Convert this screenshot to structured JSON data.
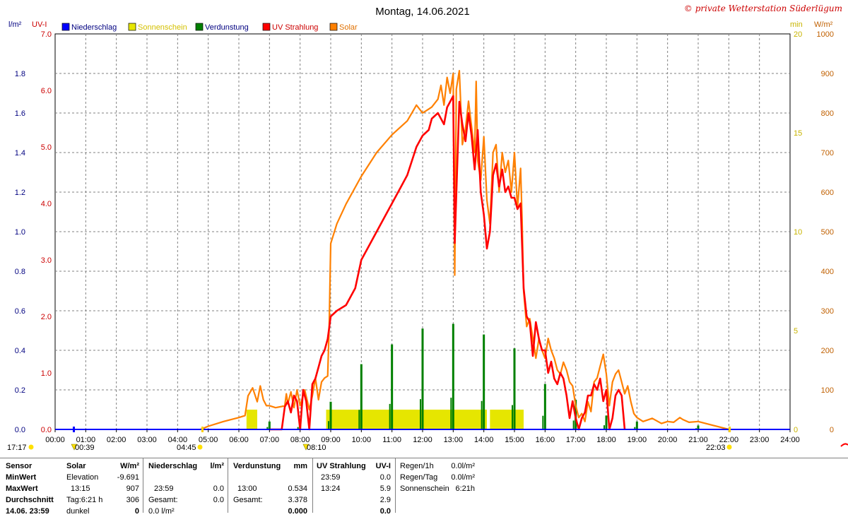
{
  "title": "Montag, 14.06.2021",
  "copyright": "© private Wetterstation Süderlügum",
  "left_axes": {
    "unit_rain": "l/m²",
    "unit_uv": "UV-I",
    "rain_ticks": [
      "0.0",
      "0.2",
      "0.4",
      "0.6",
      "0.8",
      "1.0",
      "1.2",
      "1.4",
      "1.6",
      "1.8"
    ],
    "uv_ticks": [
      "0.0",
      "1.0",
      "2.0",
      "3.0",
      "4.0",
      "5.0",
      "6.0",
      "7.0"
    ]
  },
  "right_axes": {
    "unit_min": "min",
    "unit_wm2": "W/m²",
    "min_ticks": [
      "0",
      "5",
      "10",
      "15",
      "20"
    ],
    "wm2_ticks": [
      "0",
      "100",
      "200",
      "300",
      "400",
      "500",
      "600",
      "700",
      "800",
      "900",
      "1000"
    ]
  },
  "legend": [
    {
      "label": "Niederschlag",
      "color": "#0000ff",
      "text_color": "#000080"
    },
    {
      "label": "Sonnenschein",
      "color": "#e6e600",
      "text_color": "#d4c000"
    },
    {
      "label": "Verdunstung",
      "color": "#008000",
      "text_color": "#000080"
    },
    {
      "label": "UV Strahlung",
      "color": "#ff0000",
      "text_color": "#cc0000"
    },
    {
      "label": "Solar",
      "color": "#ff8000",
      "text_color": "#e07000"
    }
  ],
  "events": {
    "left_time": "17:17",
    "moonset": "00:39",
    "sunrise": "04:45",
    "noon_marker": "08:10",
    "sunset": "22:03"
  },
  "chart_data": {
    "type": "line",
    "title": "Montag, 14.06.2021",
    "x_range_hours": [
      0,
      24
    ],
    "x_ticks": [
      "00:00",
      "01:00",
      "02:00",
      "03:00",
      "04:00",
      "05:00",
      "06:00",
      "07:00",
      "08:00",
      "09:00",
      "10:00",
      "11:00",
      "12:00",
      "13:00",
      "14:00",
      "15:00",
      "16:00",
      "17:00",
      "18:00",
      "19:00",
      "20:00",
      "21:00",
      "22:00",
      "23:00",
      "24:00"
    ],
    "grid": true,
    "legend_position": "top-left",
    "axes": {
      "solar_wm2": [
        0,
        1000
      ],
      "uv_index": [
        0,
        7
      ],
      "rain_lm2": [
        0,
        2
      ],
      "sunshine_min": [
        0,
        20
      ]
    },
    "series": [
      {
        "name": "Solar",
        "unit": "W/m²",
        "color": "#ff8000",
        "points": [
          [
            4.75,
            0
          ],
          [
            5.0,
            8
          ],
          [
            5.5,
            20
          ],
          [
            6.0,
            30
          ],
          [
            6.2,
            35
          ],
          [
            6.3,
            85
          ],
          [
            6.45,
            105
          ],
          [
            6.6,
            70
          ],
          [
            6.7,
            110
          ],
          [
            6.8,
            75
          ],
          [
            6.9,
            60
          ],
          [
            7.0,
            60
          ],
          [
            7.2,
            55
          ],
          [
            7.4,
            58
          ],
          [
            7.5,
            60
          ],
          [
            7.55,
            90
          ],
          [
            7.6,
            65
          ],
          [
            7.7,
            95
          ],
          [
            7.8,
            55
          ],
          [
            7.9,
            100
          ],
          [
            8.0,
            60
          ],
          [
            8.15,
            100
          ],
          [
            8.3,
            50
          ],
          [
            8.4,
            85
          ],
          [
            8.5,
            130
          ],
          [
            8.6,
            75
          ],
          [
            8.7,
            120
          ],
          [
            8.8,
            130
          ],
          [
            8.9,
            135
          ],
          [
            8.95,
            260
          ],
          [
            9.0,
            470
          ],
          [
            9.2,
            520
          ],
          [
            9.5,
            570
          ],
          [
            10.0,
            640
          ],
          [
            10.5,
            700
          ],
          [
            11.0,
            745
          ],
          [
            11.5,
            780
          ],
          [
            11.8,
            820
          ],
          [
            12.0,
            800
          ],
          [
            12.2,
            810
          ],
          [
            12.3,
            815
          ],
          [
            12.5,
            835
          ],
          [
            12.6,
            870
          ],
          [
            12.7,
            820
          ],
          [
            12.8,
            890
          ],
          [
            12.9,
            850
          ],
          [
            13.0,
            900
          ],
          [
            13.05,
            390
          ],
          [
            13.1,
            860
          ],
          [
            13.2,
            907
          ],
          [
            13.3,
            720
          ],
          [
            13.4,
            760
          ],
          [
            13.5,
            830
          ],
          [
            13.7,
            700
          ],
          [
            13.75,
            880
          ],
          [
            13.8,
            680
          ],
          [
            13.9,
            630
          ],
          [
            14.0,
            740
          ],
          [
            14.1,
            580
          ],
          [
            14.2,
            520
          ],
          [
            14.3,
            700
          ],
          [
            14.4,
            720
          ],
          [
            14.5,
            600
          ],
          [
            14.6,
            700
          ],
          [
            14.7,
            650
          ],
          [
            14.8,
            680
          ],
          [
            14.9,
            600
          ],
          [
            15.0,
            700
          ],
          [
            15.1,
            560
          ],
          [
            15.2,
            660
          ],
          [
            15.25,
            530
          ],
          [
            15.3,
            350
          ],
          [
            15.4,
            260
          ],
          [
            15.5,
            280
          ],
          [
            15.6,
            230
          ],
          [
            15.7,
            180
          ],
          [
            15.8,
            230
          ],
          [
            15.9,
            200
          ],
          [
            16.0,
            180
          ],
          [
            16.1,
            230
          ],
          [
            16.2,
            200
          ],
          [
            16.3,
            180
          ],
          [
            16.4,
            150
          ],
          [
            16.5,
            140
          ],
          [
            16.6,
            170
          ],
          [
            16.7,
            150
          ],
          [
            16.8,
            120
          ],
          [
            16.9,
            110
          ],
          [
            17.0,
            60
          ],
          [
            17.1,
            30
          ],
          [
            17.2,
            40
          ],
          [
            17.3,
            20
          ],
          [
            17.4,
            70
          ],
          [
            17.5,
            45
          ],
          [
            17.6,
            120
          ],
          [
            17.7,
            130
          ],
          [
            17.8,
            160
          ],
          [
            17.9,
            190
          ],
          [
            18.0,
            140
          ],
          [
            18.1,
            60
          ],
          [
            18.2,
            120
          ],
          [
            18.3,
            140
          ],
          [
            18.4,
            150
          ],
          [
            18.5,
            120
          ],
          [
            18.6,
            90
          ],
          [
            18.7,
            110
          ],
          [
            18.8,
            70
          ],
          [
            18.9,
            40
          ],
          [
            19.0,
            30
          ],
          [
            19.2,
            20
          ],
          [
            19.5,
            28
          ],
          [
            19.8,
            15
          ],
          [
            20.0,
            20
          ],
          [
            20.2,
            18
          ],
          [
            20.4,
            30
          ],
          [
            20.5,
            25
          ],
          [
            20.7,
            18
          ],
          [
            21.0,
            20
          ],
          [
            21.5,
            10
          ],
          [
            22.0,
            0
          ]
        ]
      },
      {
        "name": "UV Strahlung",
        "unit": "UV-I",
        "color": "#ff0000",
        "points": [
          [
            7.0,
            0
          ],
          [
            7.4,
            0
          ],
          [
            7.5,
            0.4
          ],
          [
            7.6,
            0.5
          ],
          [
            7.7,
            0.3
          ],
          [
            7.8,
            0.6
          ],
          [
            7.9,
            0.5
          ],
          [
            8.0,
            0.0
          ],
          [
            8.1,
            0.7
          ],
          [
            8.2,
            0.5
          ],
          [
            8.3,
            0.0
          ],
          [
            8.4,
            0.8
          ],
          [
            8.5,
            0.9
          ],
          [
            8.6,
            1.1
          ],
          [
            8.7,
            1.3
          ],
          [
            8.8,
            1.4
          ],
          [
            8.9,
            1.6
          ],
          [
            9.0,
            2.0
          ],
          [
            9.2,
            2.1
          ],
          [
            9.5,
            2.2
          ],
          [
            9.8,
            2.5
          ],
          [
            10.0,
            3.0
          ],
          [
            10.2,
            3.2
          ],
          [
            10.5,
            3.5
          ],
          [
            10.8,
            3.8
          ],
          [
            11.0,
            4.0
          ],
          [
            11.3,
            4.3
          ],
          [
            11.5,
            4.5
          ],
          [
            11.8,
            5.0
          ],
          [
            12.0,
            5.2
          ],
          [
            12.2,
            5.3
          ],
          [
            12.3,
            5.5
          ],
          [
            12.5,
            5.6
          ],
          [
            12.7,
            5.4
          ],
          [
            12.8,
            5.7
          ],
          [
            13.0,
            5.9
          ],
          [
            13.05,
            3.3
          ],
          [
            13.2,
            5.8
          ],
          [
            13.3,
            5.4
          ],
          [
            13.4,
            5.1
          ],
          [
            13.5,
            5.6
          ],
          [
            13.6,
            5.2
          ],
          [
            13.7,
            4.6
          ],
          [
            13.8,
            5.3
          ],
          [
            13.9,
            4.2
          ],
          [
            14.0,
            3.8
          ],
          [
            14.1,
            3.2
          ],
          [
            14.2,
            3.5
          ],
          [
            14.3,
            4.5
          ],
          [
            14.4,
            4.7
          ],
          [
            14.5,
            4.3
          ],
          [
            14.6,
            4.6
          ],
          [
            14.7,
            4.2
          ],
          [
            14.8,
            4.3
          ],
          [
            14.9,
            4.1
          ],
          [
            15.0,
            4.1
          ],
          [
            15.1,
            3.9
          ],
          [
            15.2,
            4.0
          ],
          [
            15.3,
            2.5
          ],
          [
            15.4,
            2.0
          ],
          [
            15.5,
            1.9
          ],
          [
            15.6,
            1.3
          ],
          [
            15.7,
            1.9
          ],
          [
            15.8,
            1.6
          ],
          [
            15.9,
            1.4
          ],
          [
            16.0,
            1.4
          ],
          [
            16.1,
            1.0
          ],
          [
            16.2,
            1.2
          ],
          [
            16.3,
            0.9
          ],
          [
            16.4,
            0.8
          ],
          [
            16.5,
            1.0
          ],
          [
            16.6,
            0.9
          ],
          [
            16.7,
            0.6
          ],
          [
            16.8,
            0.2
          ],
          [
            16.9,
            0.5
          ],
          [
            17.0,
            0.2
          ],
          [
            17.1,
            0.0
          ],
          [
            17.2,
            0.2
          ],
          [
            17.3,
            0.3
          ],
          [
            17.4,
            0.6
          ],
          [
            17.5,
            0.6
          ],
          [
            17.6,
            0.8
          ],
          [
            17.7,
            0.7
          ],
          [
            17.8,
            0.9
          ],
          [
            17.9,
            0.5
          ],
          [
            18.0,
            0.7
          ],
          [
            18.1,
            0.0
          ],
          [
            18.2,
            0.2
          ],
          [
            18.3,
            0.6
          ],
          [
            18.4,
            0.7
          ],
          [
            18.5,
            0.6
          ],
          [
            18.6,
            0.0
          ]
        ]
      },
      {
        "name": "Sonnenschein",
        "unit": "min",
        "color": "#e6e600",
        "bars": [
          [
            6.25,
            6.6,
            1
          ],
          [
            8.85,
            14.1,
            1
          ],
          [
            14.2,
            15.3,
            1
          ]
        ]
      },
      {
        "name": "Verdunstung",
        "unit": "l/m²",
        "color": "#008000",
        "bars": [
          [
            7.0,
            0.04
          ],
          [
            8.0,
            0.04
          ],
          [
            9.0,
            0.14
          ],
          [
            10.0,
            0.33
          ],
          [
            11.0,
            0.43
          ],
          [
            12.0,
            0.51
          ],
          [
            13.0,
            0.534
          ],
          [
            14.0,
            0.48
          ],
          [
            15.0,
            0.41
          ],
          [
            16.0,
            0.23
          ],
          [
            17.0,
            0.15
          ],
          [
            18.0,
            0.07
          ],
          [
            19.0,
            0.04
          ],
          [
            21.0,
            0.02
          ]
        ]
      },
      {
        "name": "Niederschlag",
        "unit": "l/m²",
        "color": "#0000ff",
        "points": []
      }
    ]
  },
  "stats_table": {
    "row_labels": [
      "Sensor",
      "MinWert",
      "MaxWert",
      "Durchschnitt",
      "14.06. 23:59"
    ],
    "solar": {
      "header": "Solar",
      "unit": "W/m²",
      "c1": [
        "Elevation",
        "13:15",
        "Tag:6:21 h",
        "dunkel"
      ],
      "c2": [
        "-9.691",
        "907",
        "306",
        "0"
      ]
    },
    "rain": {
      "header": "Niederschlag",
      "unit": "l/m²",
      "c1": [
        "",
        "23:59",
        "Gesamt:",
        "0.0 l/m²"
      ],
      "c2": [
        "",
        "0.0",
        "0.0",
        ""
      ]
    },
    "evap": {
      "header": "Verdunstung",
      "unit": "mm",
      "c1": [
        "",
        "13:00",
        "Gesamt:",
        ""
      ],
      "c2": [
        "",
        "0.534",
        "3.378",
        "0.000"
      ]
    },
    "uv": {
      "header": "UV Strahlung",
      "unit": "UV-I",
      "c1": [
        "23:59",
        "13:24",
        "",
        ""
      ],
      "c2": [
        "0.0",
        "5.9",
        "2.9",
        "0.0"
      ]
    },
    "summary": {
      "labels": [
        "Regen/1h",
        "Regen/Tag",
        "Sonnenschein"
      ],
      "values": [
        "0.0l/m²",
        "0.0l/m²",
        "6:21h"
      ]
    }
  }
}
